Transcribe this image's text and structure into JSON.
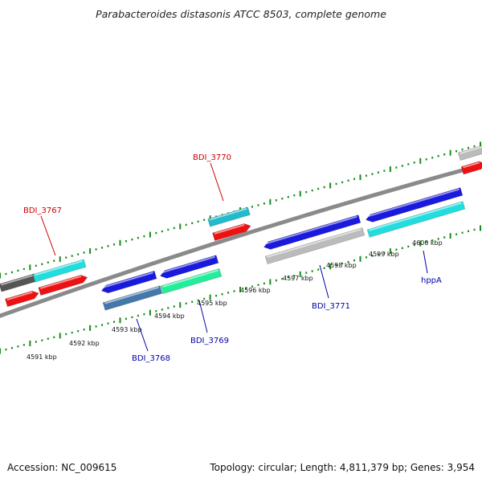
{
  "title": "Parabacteroides distasonis ATCC 8503, complete genome",
  "footer": {
    "accession": "Accession: NC_009615",
    "summary": "Topology: circular; Length: 4,811,379 bp; Genes: 3,954"
  },
  "colors": {
    "backbone": "#8a8a8a",
    "tick": "#1a8a1a",
    "forward_label": "#cc0000",
    "reverse_label": "#0000aa",
    "red": "#ee1111",
    "cyan": "#22dddd",
    "teal": "#22bbcc",
    "blue": "#1a1add",
    "steel": "#4477aa",
    "mint": "#22ee99",
    "lightgray": "#bbbbbb",
    "darkgray": "#555555"
  },
  "ruler": {
    "labels": [
      "4591 kbp",
      "4592 kbp",
      "4593 kbp",
      "4594 kbp",
      "4595 kbp",
      "4596 kbp",
      "4597 kbp",
      "4598 kbp",
      "4599 kbp",
      "4600 kbp"
    ]
  },
  "gene_labels": [
    {
      "text": "BDI_3767",
      "strand": "forward"
    },
    {
      "text": "BDI_3770",
      "strand": "forward"
    },
    {
      "text": "BDI_3768",
      "strand": "reverse"
    },
    {
      "text": "BDI_3769",
      "strand": "reverse"
    },
    {
      "text": "BDI_3771",
      "strand": "reverse"
    },
    {
      "text": "hppA",
      "strand": "reverse"
    }
  ]
}
